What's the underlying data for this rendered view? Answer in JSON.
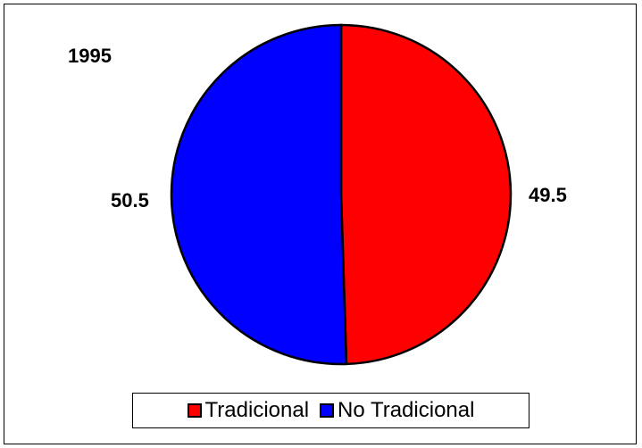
{
  "chart_data": {
    "type": "pie",
    "title": "1995",
    "categories": [
      "Tradicional",
      "No Tradicional"
    ],
    "values": [
      49.5,
      50.5
    ],
    "data_labels": [
      "49.5",
      "50.5"
    ],
    "colors": [
      "#ff0000",
      "#0000ff"
    ],
    "legend_placement": "bottom"
  }
}
